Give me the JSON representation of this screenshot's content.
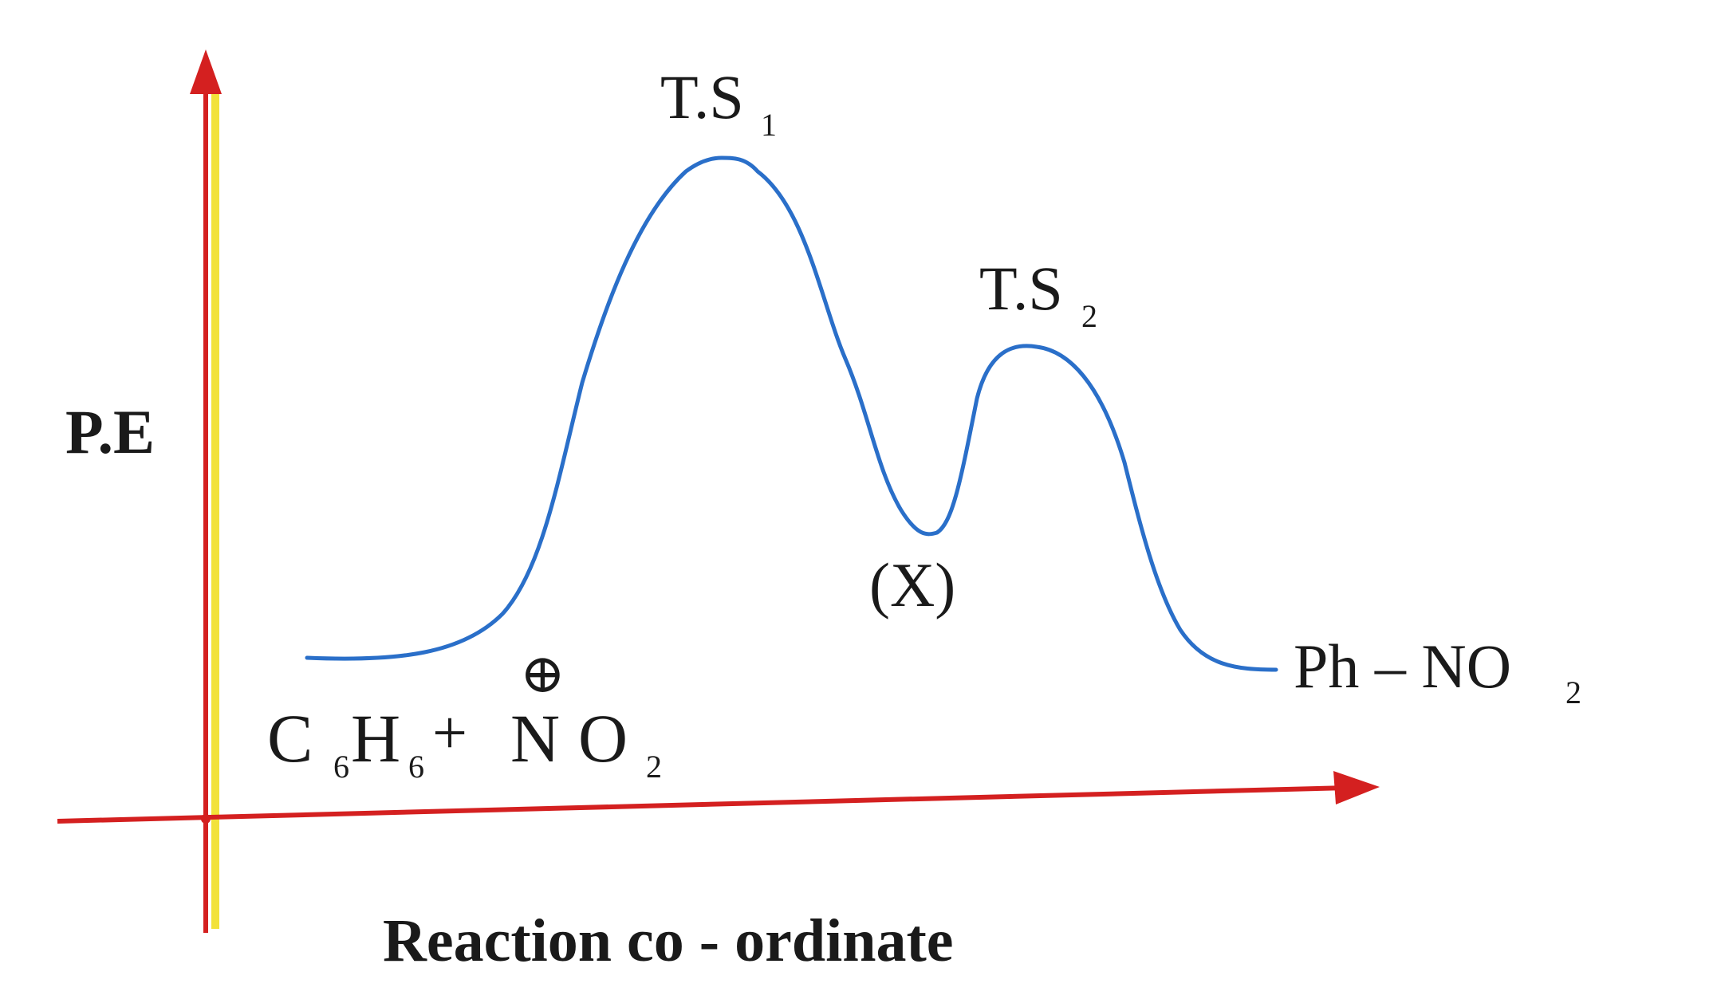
{
  "axes": {
    "y_label": "P.E",
    "x_label": "Reaction co - ordinate"
  },
  "states": {
    "ts1": {
      "main": "T.S",
      "sub": "1"
    },
    "ts2": {
      "main": "T.S",
      "sub": "2"
    },
    "intermediate": "(X)"
  },
  "reactants": {
    "c": "C",
    "c_sub": "6",
    "h": "H",
    "h_sub": "6",
    "plus": "+",
    "n": "N",
    "o": "O",
    "o_sub": "2",
    "charge_symbol": "⊕"
  },
  "product": {
    "text": "Ph – NO",
    "sub": "2"
  },
  "colors": {
    "axis": "#d42020",
    "axis_highlight": "#f2e23a",
    "curve": "#2a6fc9",
    "text": "#1a1a1a"
  }
}
